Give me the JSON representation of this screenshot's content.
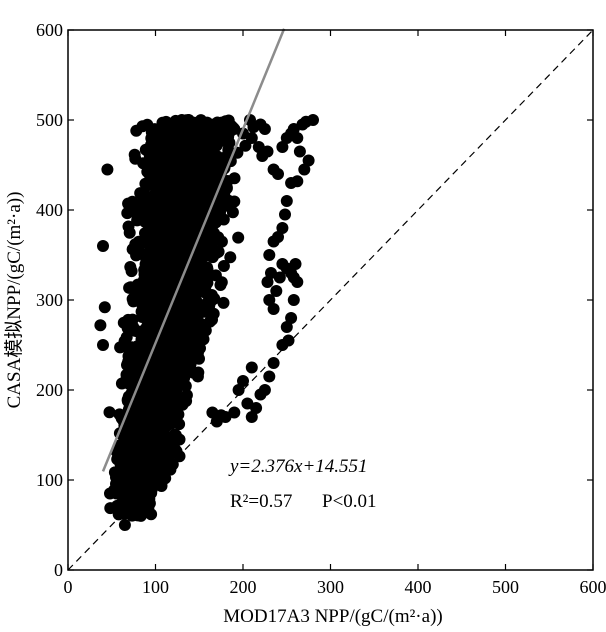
{
  "chart_data": {
    "type": "scatter",
    "title": "",
    "xlabel": "MOD17A3 NPP/(gC/(m²·a))",
    "ylabel": "CASA模拟NPP/(gC/(m²·a))",
    "xlim": [
      0,
      600
    ],
    "ylim": [
      0,
      600
    ],
    "xticks": [
      "0",
      "100",
      "200",
      "300",
      "400",
      "500",
      "600"
    ],
    "yticks": [
      "0",
      "100",
      "200",
      "300",
      "400",
      "500",
      "600"
    ],
    "grid": false,
    "regression": {
      "slope": 2.376,
      "intercept": 14.551,
      "x_range": [
        40,
        247
      ],
      "color": "#8c8c8c"
    },
    "reference_line": {
      "type": "1:1",
      "style": "dashed"
    },
    "annotations": {
      "equation": "y=2.376x+14.551",
      "r2": "R²=0.57",
      "p": "P<0.01"
    },
    "cloud": {
      "note_hidden": "",
      "x_center_by_y": [
        [
          60,
          75
        ],
        [
          100,
          80
        ],
        [
          150,
          92
        ],
        [
          200,
          100
        ],
        [
          250,
          110
        ],
        [
          300,
          118
        ],
        [
          350,
          125
        ],
        [
          400,
          130
        ],
        [
          450,
          135
        ],
        [
          490,
          140
        ]
      ],
      "x_spread_by_y": [
        [
          60,
          15
        ],
        [
          100,
          22
        ],
        [
          150,
          28
        ],
        [
          200,
          32
        ],
        [
          250,
          36
        ],
        [
          300,
          40
        ],
        [
          350,
          42
        ],
        [
          400,
          44
        ],
        [
          450,
          44
        ],
        [
          490,
          42
        ]
      ]
    },
    "points": [
      [
        45,
        445
      ],
      [
        40,
        360
      ],
      [
        42,
        292
      ],
      [
        40,
        250
      ],
      [
        37,
        272
      ],
      [
        78,
        488
      ],
      [
        65,
        50
      ],
      [
        95,
        62
      ],
      [
        90,
        75
      ],
      [
        55,
        70
      ],
      [
        48,
        85
      ],
      [
        120,
        495
      ],
      [
        130,
        500
      ],
      [
        140,
        485
      ],
      [
        155,
        495
      ],
      [
        175,
        495
      ],
      [
        190,
        490
      ],
      [
        200,
        485
      ],
      [
        210,
        480
      ],
      [
        220,
        495
      ],
      [
        225,
        490
      ],
      [
        208,
        500
      ],
      [
        212,
        492
      ],
      [
        218,
        470
      ],
      [
        222,
        460
      ],
      [
        228,
        465
      ],
      [
        235,
        445
      ],
      [
        240,
        440
      ],
      [
        245,
        470
      ],
      [
        250,
        480
      ],
      [
        255,
        485
      ],
      [
        258,
        490
      ],
      [
        262,
        480
      ],
      [
        265,
        465
      ],
      [
        268,
        495
      ],
      [
        272,
        498
      ],
      [
        280,
        500
      ],
      [
        275,
        455
      ],
      [
        270,
        445
      ],
      [
        262,
        432
      ],
      [
        255,
        430
      ],
      [
        250,
        410
      ],
      [
        248,
        395
      ],
      [
        245,
        380
      ],
      [
        240,
        370
      ],
      [
        235,
        365
      ],
      [
        230,
        350
      ],
      [
        232,
        330
      ],
      [
        228,
        320
      ],
      [
        230,
        300
      ],
      [
        235,
        290
      ],
      [
        238,
        310
      ],
      [
        242,
        325
      ],
      [
        245,
        340
      ],
      [
        250,
        335
      ],
      [
        255,
        330
      ],
      [
        258,
        325
      ],
      [
        260,
        340
      ],
      [
        262,
        320
      ],
      [
        258,
        300
      ],
      [
        255,
        280
      ],
      [
        250,
        270
      ],
      [
        252,
        255
      ],
      [
        245,
        250
      ],
      [
        235,
        230
      ],
      [
        230,
        215
      ],
      [
        225,
        200
      ],
      [
        220,
        195
      ],
      [
        215,
        180
      ],
      [
        210,
        170
      ],
      [
        205,
        185
      ],
      [
        190,
        175
      ],
      [
        180,
        170
      ],
      [
        175,
        172
      ],
      [
        170,
        165
      ],
      [
        165,
        175
      ],
      [
        195,
        200
      ],
      [
        200,
        210
      ],
      [
        210,
        225
      ]
    ]
  }
}
